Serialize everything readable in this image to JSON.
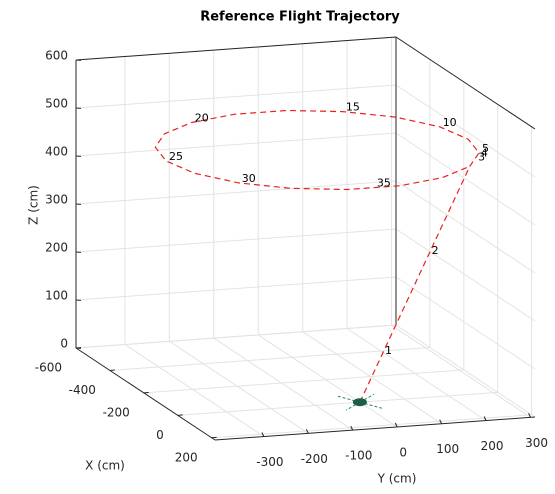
{
  "chart_data": {
    "type": "line3d",
    "title": "Reference Flight Trajectory",
    "xlabel": "X (cm)",
    "ylabel": "Y (cm)",
    "zlabel": "Z (cm)",
    "xlim": [
      -600,
      220
    ],
    "ylim": [
      -410,
      310
    ],
    "zlim": [
      0,
      600
    ],
    "xticks": [
      -600,
      -400,
      -200,
      0,
      200
    ],
    "yticks": [
      -300,
      -200,
      -100,
      0,
      100,
      200,
      300
    ],
    "zticks": [
      0,
      100,
      200,
      300,
      400,
      500,
      600
    ],
    "grid": true,
    "color": "#e8231e",
    "x": [
      0,
      19,
      -84,
      -200,
      -316,
      -419,
      -494,
      -535,
      -535,
      -494,
      -419,
      -316,
      -200,
      -84,
      19,
      94,
      135,
      135,
      94,
      19
    ],
    "y": [
      0,
      240,
      300,
      320,
      300,
      240,
      150,
      39,
      -79,
      -190,
      -280,
      -340,
      -360,
      -340,
      -280,
      -190,
      -79,
      39,
      150,
      240
    ],
    "z": [
      0,
      480,
      480,
      480,
      480,
      480,
      480,
      480,
      480,
      480,
      480,
      480,
      480,
      480,
      480,
      480,
      480,
      480,
      480,
      480
    ],
    "annotations": [
      {
        "text": "1",
        "x": 4,
        "y": 48,
        "z": 96
      },
      {
        "text": "2",
        "x": 12,
        "y": 150,
        "z": 300
      },
      {
        "text": "3",
        "x": -15,
        "y": 265,
        "z": 480
      },
      {
        "text": "4",
        "x": -46,
        "y": 283,
        "z": 480
      },
      {
        "text": "5",
        "x": -84,
        "y": 300,
        "z": 480
      },
      {
        "text": "10",
        "x": -316,
        "y": 300,
        "z": 480
      },
      {
        "text": "15",
        "x": -494,
        "y": 150,
        "z": 480
      },
      {
        "text": "20",
        "x": -494,
        "y": -190,
        "z": 480
      },
      {
        "text": "25",
        "x": -200,
        "y": -360,
        "z": 480
      },
      {
        "text": "30",
        "x": 19,
        "y": -280,
        "z": 480
      },
      {
        "text": "35",
        "x": 135,
        "y": -20,
        "z": 480
      }
    ]
  }
}
